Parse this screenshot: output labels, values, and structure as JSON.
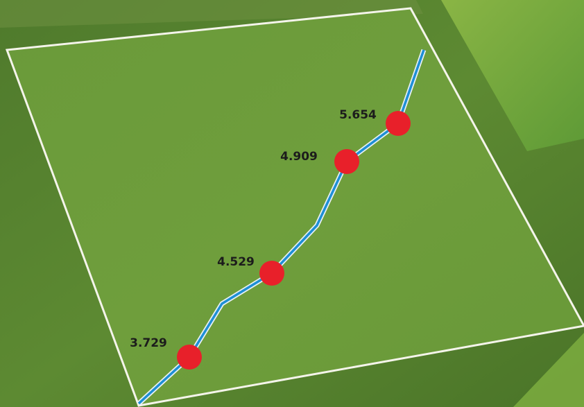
{
  "chart_data": {
    "type": "line",
    "values": [
      3.729,
      4.529,
      4.909,
      5.654
    ],
    "color": "#1e8fd6",
    "marker_color": "#e8202a"
  }
}
